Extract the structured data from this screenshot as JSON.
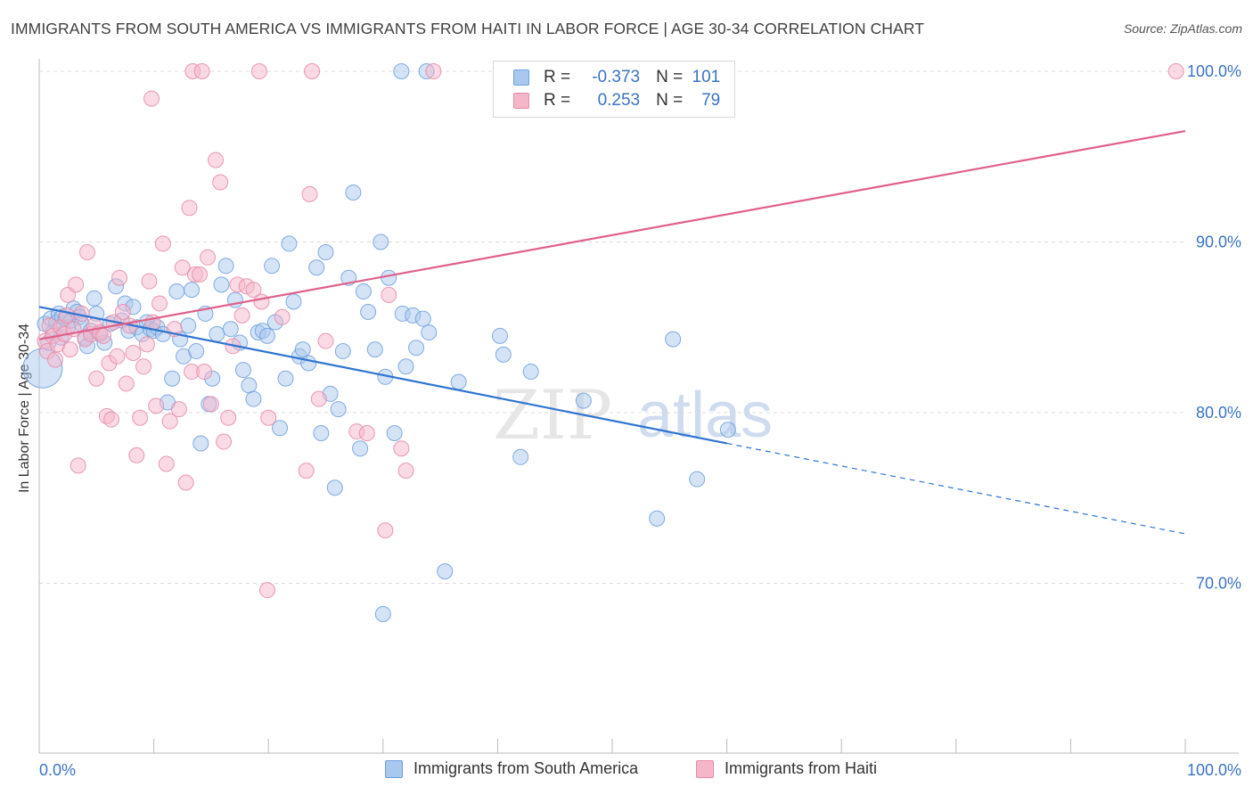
{
  "title": "IMMIGRANTS FROM SOUTH AMERICA VS IMMIGRANTS FROM HAITI IN LABOR FORCE | AGE 30-34 CORRELATION CHART",
  "source": "Source: ZipAtlas.com",
  "watermark": {
    "zip": "ZIP",
    "atlas": "atlas"
  },
  "colors": {
    "blue_fill": "#a9c8ee",
    "blue_stroke": "#6d9fdc",
    "blue_line": "#2f74d0",
    "pink_fill": "#f6b6c9",
    "pink_stroke": "#e58aa8",
    "pink_line": "#e0608a",
    "axis_label": "#3a73c4",
    "grid": "#dcdcdc"
  },
  "legend": {
    "rows": [
      {
        "r_label": "R =",
        "r_value": "-0.373",
        "n_label": "N =",
        "n_value": "101",
        "series": "blue"
      },
      {
        "r_label": "R =",
        "r_value": "0.253",
        "n_label": "N =",
        "n_value": "79",
        "series": "pink"
      }
    ]
  },
  "bottom_legend": [
    {
      "label": "Immigrants from South America",
      "series": "blue"
    },
    {
      "label": "Immigrants from Haiti",
      "series": "pink"
    }
  ],
  "chart_data": {
    "type": "scatter",
    "title": "IMMIGRANTS FROM SOUTH AMERICA VS IMMIGRANTS FROM HAITI IN LABOR FORCE | AGE 30-34 CORRELATION CHART",
    "xlabel": "",
    "ylabel": "In Labor Force | Age 30-34",
    "xlim": [
      0,
      100
    ],
    "ylim": [
      60.5,
      102.5
    ],
    "x_tick_labels": [
      "0.0%",
      "100.0%"
    ],
    "y_ticks": [
      70,
      80,
      90,
      100
    ],
    "y_tick_labels": [
      "70.0%",
      "80.0%",
      "90.0%",
      "100.0%"
    ],
    "grid": true,
    "legend_position": "top-center",
    "series": [
      {
        "name": "Immigrants from South America",
        "color": "#6d9fdc",
        "trend": {
          "x": [
            0,
            60
          ],
          "y": [
            86.2,
            78.2
          ],
          "dashed_extension_to": [
            100,
            72.9
          ]
        },
        "points": [
          [
            0.3,
            82.6,
            1
          ],
          [
            0.5,
            85.2,
            0
          ],
          [
            0.8,
            84.1,
            0
          ],
          [
            1.0,
            85.5,
            0
          ],
          [
            1.2,
            84.7,
            0
          ],
          [
            1.5,
            85.3,
            0
          ],
          [
            1.7,
            85.8,
            0
          ],
          [
            1.9,
            84.4,
            0
          ],
          [
            2.0,
            85.6,
            0
          ],
          [
            2.3,
            85.5,
            0
          ],
          [
            2.5,
            85.0,
            0
          ],
          [
            2.8,
            85.4,
            0
          ],
          [
            3.0,
            86.1,
            0
          ],
          [
            3.3,
            85.9,
            0
          ],
          [
            3.5,
            85.6,
            0
          ],
          [
            3.7,
            85.2,
            0
          ],
          [
            4.0,
            84.4,
            0
          ],
          [
            4.2,
            83.9,
            0
          ],
          [
            4.5,
            84.8,
            0
          ],
          [
            4.8,
            86.7,
            0
          ],
          [
            5.0,
            85.8,
            0
          ],
          [
            5.3,
            84.6,
            0
          ],
          [
            5.7,
            84.1,
            0
          ],
          [
            6.2,
            85.2,
            0
          ],
          [
            6.7,
            87.4,
            0
          ],
          [
            7.2,
            85.4,
            0
          ],
          [
            7.5,
            86.4,
            0
          ],
          [
            7.8,
            84.8,
            0
          ],
          [
            8.2,
            86.2,
            0
          ],
          [
            8.5,
            85.0,
            0
          ],
          [
            9.0,
            84.6,
            0
          ],
          [
            9.4,
            85.3,
            0
          ],
          [
            9.7,
            84.9,
            0
          ],
          [
            10.0,
            84.8,
            0
          ],
          [
            10.3,
            85.0,
            0
          ],
          [
            10.8,
            84.6,
            0
          ],
          [
            11.2,
            80.6,
            0
          ],
          [
            11.6,
            82.0,
            0
          ],
          [
            12.0,
            87.1,
            0
          ],
          [
            12.3,
            84.3,
            0
          ],
          [
            12.6,
            83.3,
            0
          ],
          [
            13.0,
            85.1,
            0
          ],
          [
            13.3,
            87.2,
            0
          ],
          [
            13.7,
            83.6,
            0
          ],
          [
            14.1,
            78.2,
            0
          ],
          [
            14.5,
            85.8,
            0
          ],
          [
            14.8,
            80.5,
            0
          ],
          [
            15.1,
            82.0,
            0
          ],
          [
            15.5,
            84.6,
            0
          ],
          [
            15.9,
            87.5,
            0
          ],
          [
            16.3,
            88.6,
            0
          ],
          [
            16.7,
            84.9,
            0
          ],
          [
            17.1,
            86.6,
            0
          ],
          [
            17.5,
            84.1,
            0
          ],
          [
            17.8,
            82.5,
            0
          ],
          [
            18.3,
            81.6,
            0
          ],
          [
            18.7,
            80.8,
            0
          ],
          [
            19.1,
            84.7,
            0
          ],
          [
            19.5,
            84.8,
            0
          ],
          [
            19.9,
            84.5,
            0
          ],
          [
            20.3,
            88.6,
            0
          ],
          [
            20.6,
            85.3,
            0
          ],
          [
            21.0,
            79.1,
            0
          ],
          [
            21.5,
            82.0,
            0
          ],
          [
            21.8,
            89.9,
            0
          ],
          [
            22.2,
            86.5,
            0
          ],
          [
            22.7,
            83.3,
            0
          ],
          [
            23.0,
            83.7,
            0
          ],
          [
            23.5,
            82.9,
            0
          ],
          [
            24.2,
            88.5,
            0
          ],
          [
            24.6,
            78.8,
            0
          ],
          [
            25.0,
            89.4,
            0
          ],
          [
            25.4,
            81.1,
            0
          ],
          [
            25.8,
            75.6,
            0
          ],
          [
            26.1,
            80.2,
            0
          ],
          [
            26.5,
            83.6,
            0
          ],
          [
            27.0,
            87.9,
            0
          ],
          [
            27.4,
            92.9,
            0
          ],
          [
            28.0,
            77.9,
            0
          ],
          [
            28.3,
            87.1,
            0
          ],
          [
            28.7,
            85.9,
            0
          ],
          [
            29.3,
            83.7,
            0
          ],
          [
            29.8,
            90.0,
            0
          ],
          [
            30.2,
            82.1,
            0
          ],
          [
            30.5,
            87.9,
            0
          ],
          [
            31.0,
            78.8,
            0
          ],
          [
            31.7,
            85.8,
            0
          ],
          [
            32.0,
            82.7,
            0
          ],
          [
            32.6,
            85.7,
            0
          ],
          [
            32.9,
            83.8,
            0
          ],
          [
            33.5,
            85.5,
            0
          ],
          [
            34.0,
            84.7,
            0
          ],
          [
            36.6,
            81.8,
            0
          ],
          [
            40.2,
            84.5,
            0
          ],
          [
            40.5,
            83.4,
            0
          ],
          [
            42.9,
            82.4,
            0
          ],
          [
            30.0,
            68.2,
            0
          ],
          [
            42.0,
            77.4,
            0
          ],
          [
            47.5,
            80.7,
            0
          ],
          [
            55.3,
            84.3,
            0
          ],
          [
            57.4,
            76.1,
            0
          ],
          [
            35.4,
            70.7,
            0
          ],
          [
            53.9,
            73.8,
            0
          ],
          [
            60.1,
            79.0,
            0
          ],
          [
            31.6,
            100.0,
            0
          ],
          [
            33.8,
            100.0,
            0
          ]
        ]
      },
      {
        "name": "Immigrants from Haiti",
        "color": "#e58aa8",
        "trend": {
          "x": [
            0,
            100
          ],
          "y": [
            84.3,
            96.5
          ]
        },
        "points": [
          [
            0.5,
            84.2,
            0
          ],
          [
            0.7,
            83.6,
            0
          ],
          [
            0.9,
            85.1,
            0
          ],
          [
            1.2,
            84.5,
            0
          ],
          [
            1.4,
            83.1,
            0
          ],
          [
            1.6,
            84.0,
            0
          ],
          [
            1.9,
            85.0,
            0
          ],
          [
            2.2,
            84.6,
            0
          ],
          [
            2.4,
            85.7,
            0
          ],
          [
            2.5,
            86.9,
            0
          ],
          [
            2.7,
            83.7,
            0
          ],
          [
            3.0,
            84.9,
            0
          ],
          [
            3.2,
            87.5,
            0
          ],
          [
            3.4,
            76.9,
            0
          ],
          [
            3.7,
            85.8,
            0
          ],
          [
            4.0,
            84.3,
            0
          ],
          [
            4.2,
            89.4,
            0
          ],
          [
            4.5,
            84.6,
            0
          ],
          [
            4.8,
            85.1,
            0
          ],
          [
            5.0,
            82.0,
            0
          ],
          [
            5.3,
            84.7,
            0
          ],
          [
            5.6,
            84.5,
            0
          ],
          [
            5.9,
            79.8,
            0
          ],
          [
            6.1,
            82.9,
            0
          ],
          [
            6.3,
            79.6,
            0
          ],
          [
            6.5,
            85.3,
            0
          ],
          [
            6.8,
            83.3,
            0
          ],
          [
            7.0,
            87.9,
            0
          ],
          [
            7.3,
            85.9,
            0
          ],
          [
            7.6,
            81.7,
            0
          ],
          [
            7.9,
            85.1,
            0
          ],
          [
            8.2,
            83.5,
            0
          ],
          [
            8.5,
            77.5,
            0
          ],
          [
            8.8,
            79.7,
            0
          ],
          [
            9.1,
            82.7,
            0
          ],
          [
            9.4,
            84.0,
            0
          ],
          [
            9.6,
            87.7,
            0
          ],
          [
            9.9,
            85.3,
            0
          ],
          [
            10.2,
            80.4,
            0
          ],
          [
            10.5,
            86.4,
            0
          ],
          [
            10.8,
            89.9,
            0
          ],
          [
            11.1,
            77.0,
            0
          ],
          [
            11.4,
            79.5,
            0
          ],
          [
            11.8,
            84.9,
            0
          ],
          [
            12.2,
            80.2,
            0
          ],
          [
            12.5,
            88.5,
            0
          ],
          [
            12.8,
            75.9,
            0
          ],
          [
            13.1,
            92.0,
            0
          ],
          [
            13.3,
            82.4,
            0
          ],
          [
            13.6,
            88.1,
            0
          ],
          [
            14.0,
            88.1,
            0
          ],
          [
            14.4,
            82.4,
            0
          ],
          [
            14.7,
            89.1,
            0
          ],
          [
            15.0,
            80.5,
            0
          ],
          [
            15.4,
            94.8,
            0
          ],
          [
            15.8,
            93.5,
            0
          ],
          [
            16.1,
            78.3,
            0
          ],
          [
            16.5,
            79.7,
            0
          ],
          [
            16.9,
            83.9,
            0
          ],
          [
            17.3,
            87.5,
            0
          ],
          [
            17.7,
            85.7,
            0
          ],
          [
            18.1,
            87.4,
            0
          ],
          [
            18.7,
            87.2,
            0
          ],
          [
            19.4,
            86.5,
            0
          ],
          [
            20.0,
            79.7,
            0
          ],
          [
            21.2,
            85.6,
            0
          ],
          [
            23.3,
            76.6,
            0
          ],
          [
            23.6,
            92.8,
            0
          ],
          [
            24.4,
            80.8,
            0
          ],
          [
            25.0,
            84.2,
            0
          ],
          [
            27.7,
            78.9,
            0
          ],
          [
            28.6,
            78.8,
            0
          ],
          [
            30.2,
            73.1,
            0
          ],
          [
            30.5,
            86.9,
            0
          ],
          [
            31.6,
            77.9,
            0
          ],
          [
            32.0,
            76.6,
            0
          ],
          [
            19.9,
            69.6,
            0
          ],
          [
            9.8,
            98.4,
            0
          ],
          [
            13.4,
            100.0,
            0
          ],
          [
            14.2,
            100.0,
            0
          ],
          [
            19.2,
            100.0,
            0
          ],
          [
            23.8,
            100.0,
            0
          ],
          [
            34.4,
            100.0,
            0
          ],
          [
            99.2,
            100.0,
            0
          ]
        ]
      }
    ]
  }
}
